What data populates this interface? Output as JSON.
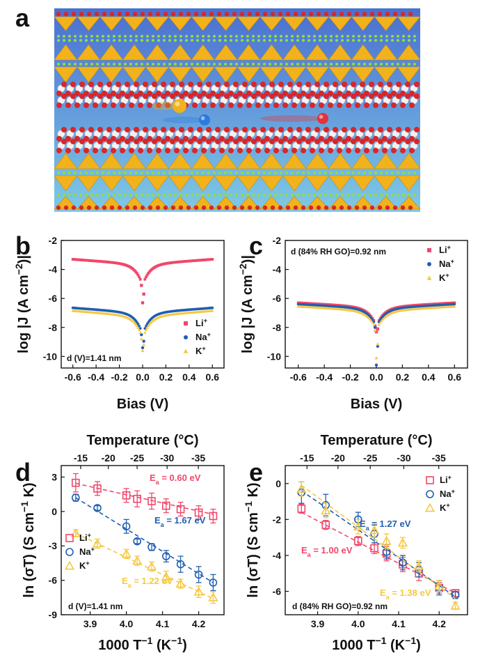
{
  "panel_labels": {
    "a": "a",
    "b": "b",
    "c": "c",
    "d": "d",
    "e": "e"
  },
  "illustration": {
    "description_icons": [
      "graphene-oxide-layer-top",
      "graphene-oxide-layer-bottom",
      "yellow-ion",
      "blue-ion",
      "red-ion"
    ],
    "colors": {
      "bg_top": "#4a6fd0",
      "bg_bottom": "#7ec9e6",
      "oxygen": "#d8262a",
      "carbon": "#f2f2f2",
      "gold": "#f2b21b",
      "green": "#8ee03a",
      "blue_ion": "#2b7be0",
      "red_ion": "#e0343a",
      "yellow_ion": "#f2b21b"
    }
  },
  "chart_data": [
    {
      "id": "b",
      "type": "scatter",
      "xlabel": "Bias (V)",
      "ylabel": "log |J (A cm⁻²)|",
      "xlim": [
        -0.7,
        0.7
      ],
      "ylim": [
        -10.8,
        -2
      ],
      "xticks": [
        "-0.6",
        "-0.4",
        "-0.2",
        "0.0",
        "0.2",
        "0.4",
        "0.6"
      ],
      "yticks": [
        "-2",
        "-4",
        "-6",
        "-8",
        "-10"
      ],
      "annotation": "d (V)=1.41 nm",
      "legend_position": "bottom-right",
      "series": [
        {
          "name": "Li⁺",
          "color": "#f0476a",
          "marker": "square",
          "profile": {
            "level": -3.3,
            "depth": -5.1,
            "min_point": -6.3
          }
        },
        {
          "name": "Na⁺",
          "color": "#1f5fb0",
          "marker": "circle",
          "profile": {
            "level": -6.65,
            "depth": -8.5,
            "min_point": -9.4
          }
        },
        {
          "name": "K⁺",
          "color": "#f5c842",
          "marker": "triangle",
          "profile": {
            "level": -6.85,
            "depth": -8.8,
            "min_point": -9.6
          }
        }
      ]
    },
    {
      "id": "c",
      "type": "scatter",
      "xlabel": "Bias (V)",
      "ylabel": "log |J (A cm⁻²)|",
      "xlim": [
        -0.7,
        0.7
      ],
      "ylim": [
        -10.8,
        -2
      ],
      "xticks": [
        "-0.6",
        "-0.4",
        "-0.2",
        "0.0",
        "0.2",
        "0.4",
        "0.6"
      ],
      "yticks": [
        "-2",
        "-4",
        "-6",
        "-8",
        "-10"
      ],
      "annotation": "d (84% RH GO)=0.92 nm",
      "legend_position": "top-right",
      "series": [
        {
          "name": "Li⁺",
          "color": "#f0476a",
          "marker": "square",
          "profile": {
            "level": -6.3,
            "depth": -7.9,
            "min_point": -8.3
          }
        },
        {
          "name": "Na⁺",
          "color": "#1f5fb0",
          "marker": "circle",
          "profile": {
            "level": -6.4,
            "depth": -8.0,
            "min_point": -10.6
          }
        },
        {
          "name": "K⁺",
          "color": "#f5c842",
          "marker": "triangle",
          "profile": {
            "level": -6.55,
            "depth": -8.2,
            "min_point": -10.1
          }
        }
      ]
    },
    {
      "id": "d",
      "type": "scatter",
      "xlabel": "1000 T⁻¹ (K⁻¹)",
      "ylabel": "ln (σT) (S cm⁻¹ K)",
      "top_xlabel": "Temperature (°C)",
      "xlim": [
        3.82,
        4.27
      ],
      "ylim": [
        -9,
        4
      ],
      "xticks": [
        "3.9",
        "4.0",
        "4.1",
        "4.2"
      ],
      "yticks": [
        "3",
        "0",
        "-3",
        "-6",
        "-9"
      ],
      "top_ticks": [
        "-15",
        "-20",
        "-25",
        "-30",
        "-35"
      ],
      "annotation": "d (V)=1.41 nm",
      "legend_position": "bottom-left",
      "series": [
        {
          "name": "Li⁺",
          "color": "#f0476a",
          "marker": "square",
          "ea": "Eₐ = 0.60 eV",
          "x": [
            3.86,
            3.92,
            4.0,
            4.03,
            4.07,
            4.11,
            4.15,
            4.2,
            4.24
          ],
          "y": [
            2.5,
            2.0,
            1.4,
            1.1,
            0.9,
            0.5,
            0.2,
            -0.1,
            -0.4
          ],
          "err": [
            0.8,
            0.6,
            0.6,
            0.7,
            0.7,
            0.6,
            0.6,
            0.6,
            0.6
          ],
          "fit": [
            [
              3.86,
              2.45
            ],
            [
              4.24,
              -0.25
            ]
          ]
        },
        {
          "name": "Na⁺",
          "color": "#1f5fb0",
          "marker": "circle",
          "ea": "Eₐ = 1.67 eV",
          "x": [
            3.86,
            3.92,
            4.0,
            4.03,
            4.07,
            4.11,
            4.15,
            4.2,
            4.24
          ],
          "y": [
            1.2,
            0.3,
            -1.3,
            -2.6,
            -3.1,
            -3.9,
            -4.6,
            -5.5,
            -6.2
          ],
          "err": [
            0.3,
            0.2,
            0.6,
            0.2,
            0.3,
            0.5,
            0.7,
            0.7,
            0.7
          ],
          "fit": [
            [
              3.86,
              1.2
            ],
            [
              4.24,
              -6.2
            ]
          ]
        },
        {
          "name": "K⁺",
          "color": "#f5c842",
          "marker": "triangle",
          "ea": "Eₐ = 1.22 eV",
          "x": [
            3.86,
            3.92,
            4.0,
            4.03,
            4.07,
            4.11,
            4.15,
            4.2,
            4.24
          ],
          "y": [
            -1.9,
            -2.8,
            -3.7,
            -4.3,
            -4.8,
            -5.7,
            -6.3,
            -7.0,
            -7.5
          ],
          "err": [
            0.3,
            0.4,
            0.4,
            0.4,
            0.4,
            0.5,
            0.4,
            0.5,
            0.5
          ],
          "fit": [
            [
              3.86,
              -1.9
            ],
            [
              4.24,
              -7.6
            ]
          ]
        }
      ]
    },
    {
      "id": "e",
      "type": "scatter",
      "xlabel": "1000 T⁻¹ (K⁻¹)",
      "ylabel": "ln (σT) (S cm⁻¹ K)",
      "top_xlabel": "Temperature (°C)",
      "xlim": [
        3.82,
        4.27
      ],
      "ylim": [
        -7.3,
        1
      ],
      "xticks": [
        "3.9",
        "4.0",
        "4.1",
        "4.2"
      ],
      "yticks": [
        "0",
        "-2",
        "-4",
        "-6"
      ],
      "top_ticks": [
        "-15",
        "-20",
        "-25",
        "-30",
        "-35"
      ],
      "annotation": "d (84% RH GO)=0.92 nm",
      "legend_position": "top-right",
      "series": [
        {
          "name": "Li⁺",
          "color": "#f0476a",
          "marker": "square",
          "ea": "Eₐ = 1.00 eV",
          "x": [
            3.86,
            3.92,
            4.0,
            4.04,
            4.07,
            4.11,
            4.15,
            4.2,
            4.24
          ],
          "y": [
            -1.4,
            -2.3,
            -3.2,
            -3.6,
            -3.9,
            -4.5,
            -5.0,
            -5.8,
            -6.1
          ],
          "err": [
            0.25,
            0.25,
            0.25,
            0.3,
            0.4,
            0.4,
            0.4,
            0.3,
            0.2
          ],
          "fit": [
            [
              3.86,
              -1.6
            ],
            [
              4.24,
              -6.1
            ]
          ]
        },
        {
          "name": "Na⁺",
          "color": "#1f5fb0",
          "marker": "circle",
          "ea": "Eₐ = 1.27 eV",
          "x": [
            3.86,
            3.92,
            4.0,
            4.04,
            4.07,
            4.11,
            4.15,
            4.2,
            4.24
          ],
          "y": [
            -0.5,
            -1.2,
            -2.0,
            -2.8,
            -3.8,
            -4.4,
            -4.8,
            -5.8,
            -6.2
          ],
          "err": [
            0.6,
            0.6,
            0.4,
            0.5,
            0.4,
            0.4,
            0.4,
            0.4,
            0.2
          ],
          "fit": [
            [
              3.86,
              -0.4
            ],
            [
              4.24,
              -6.3
            ]
          ]
        },
        {
          "name": "K⁺",
          "color": "#f5c842",
          "marker": "triangle",
          "ea": "Eₐ = 1.38 eV",
          "x": [
            3.86,
            3.92,
            4.0,
            4.04,
            4.07,
            4.11,
            4.15,
            4.2,
            4.24
          ],
          "y": [
            -0.3,
            -1.5,
            -2.4,
            -2.6,
            -3.2,
            -3.3,
            -4.6,
            -5.7,
            -6.8
          ],
          "err": [
            0.4,
            0.4,
            0.4,
            0.4,
            0.4,
            0.3,
            0.3,
            0.3,
            0.2
          ],
          "fit": [
            [
              3.86,
              -0.1
            ],
            [
              4.24,
              -6.4
            ]
          ]
        }
      ]
    }
  ]
}
